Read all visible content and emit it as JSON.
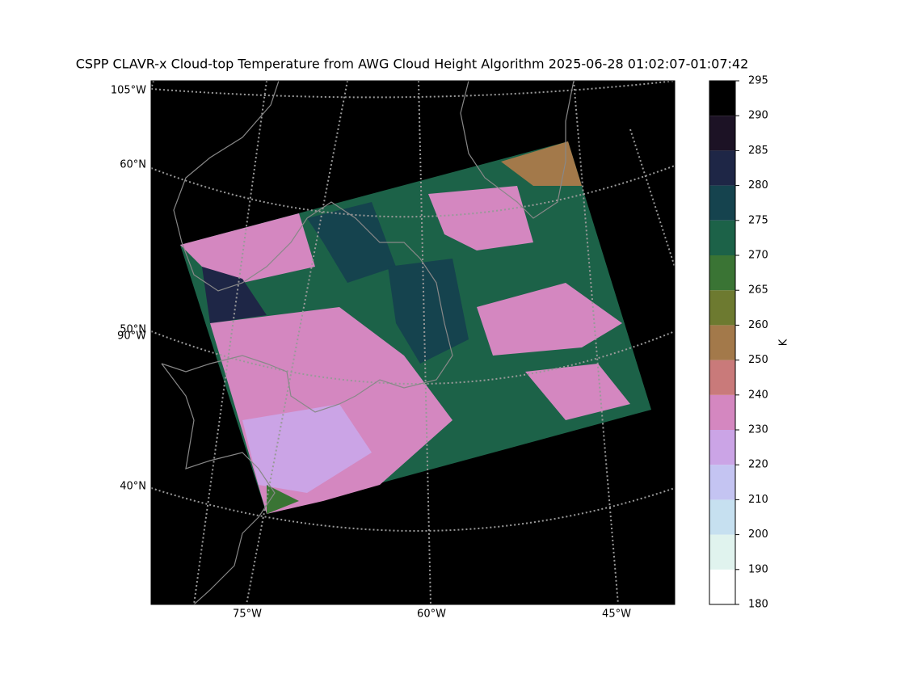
{
  "title": "CSPP CLAVR-x Cloud-top Temperature from AWG Cloud Height Algorithm 2025-06-28 01:02:07-01:07:42",
  "map": {
    "labels": [
      "105°W",
      "60°N",
      "50°N",
      "90°W",
      "40°N",
      "75°W",
      "60°W",
      "45°W"
    ]
  },
  "colorbar": {
    "label": "K",
    "boundaries": [
      180,
      190,
      200,
      210,
      220,
      230,
      240,
      250,
      260,
      265,
      270,
      275,
      280,
      285,
      290,
      295
    ],
    "colors": [
      "#ffffff",
      "#e0f3ee",
      "#c6e0f0",
      "#c4c4f2",
      "#cba4e6",
      "#d487c0",
      "#c97a7a",
      "#a3794a",
      "#6d7a30",
      "#3a7434",
      "#1c6248",
      "#15434e",
      "#1e2646",
      "#1c1225",
      "#000000"
    ]
  }
}
